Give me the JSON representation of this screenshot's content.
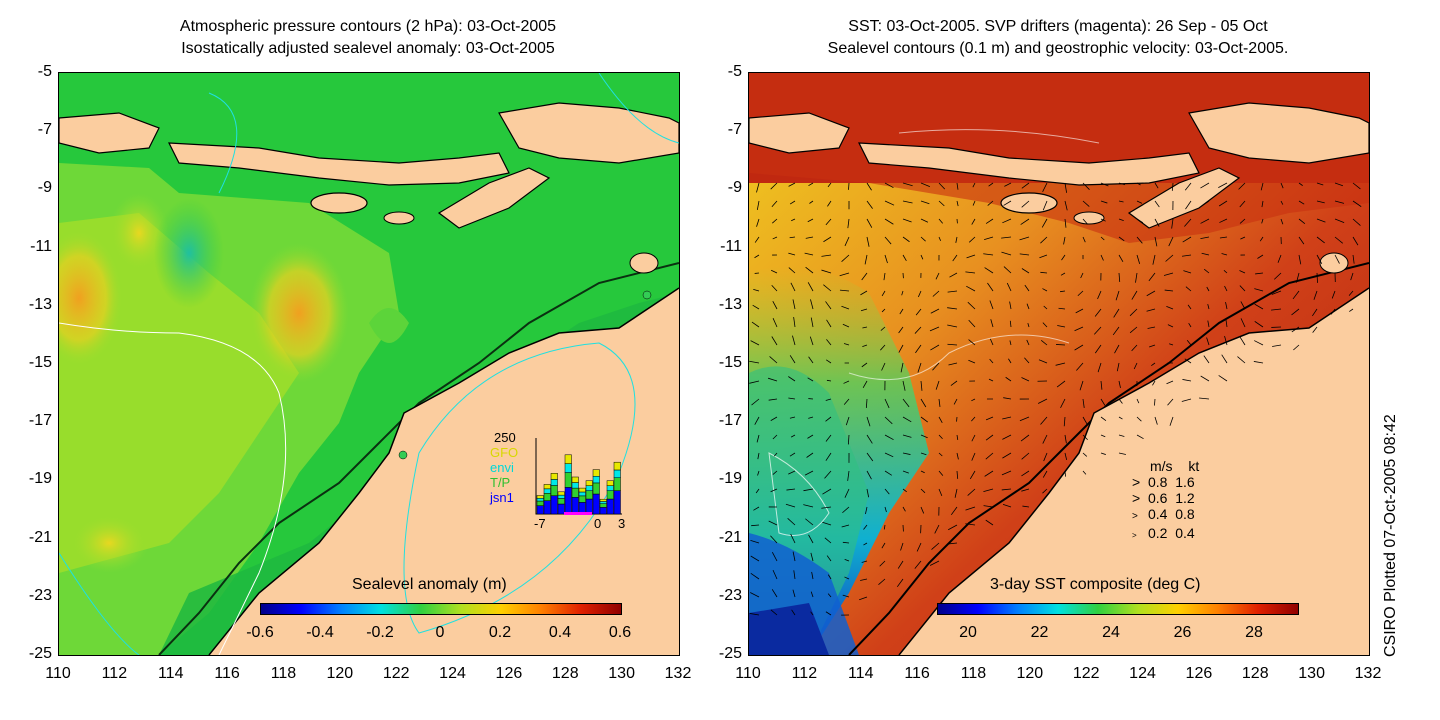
{
  "left_panel": {
    "title_line1": "Atmospheric pressure contours (2 hPa): 03-Oct-2005",
    "title_line2": "Isostatically adjusted sealevel anomaly: 03-Oct-2005",
    "y_ticks": [
      "-5",
      "-7",
      "-9",
      "-11",
      "-13",
      "-15",
      "-17",
      "-19",
      "-21",
      "-23",
      "-25"
    ],
    "x_ticks": [
      "110",
      "112",
      "114",
      "116",
      "118",
      "120",
      "122",
      "124",
      "126",
      "128",
      "130",
      "132"
    ],
    "colorbar": {
      "title": "Sealevel anomaly (m)",
      "labels": [
        "-0.6",
        "-0.4",
        "-0.2",
        "0",
        "0.2",
        "0.4",
        "0.6"
      ]
    },
    "inset": {
      "count_label": "250",
      "legend": [
        "GFO",
        "envi",
        "T/P",
        "jsn1"
      ],
      "legend_colors": [
        "#e8e800",
        "#00e8e8",
        "#30d030",
        "#0000ff"
      ],
      "x_labels": [
        "-7",
        "0",
        "3"
      ],
      "bars": [
        0.25,
        0.4,
        0.55,
        0.3,
        0.8,
        0.5,
        0.35,
        0.45,
        0.6,
        0.2,
        0.45,
        0.7
      ]
    }
  },
  "right_panel": {
    "title_line1": "SST: 03-Oct-2005. SVP drifters (magenta): 26 Sep - 05 Oct",
    "title_line2": "Sealevel contours (0.1 m) and geostrophic velocity: 03-Oct-2005.",
    "y_ticks": [
      "-5",
      "-7",
      "-9",
      "-11",
      "-13",
      "-15",
      "-17",
      "-19",
      "-21",
      "-23",
      "-25"
    ],
    "x_ticks": [
      "110",
      "112",
      "114",
      "116",
      "118",
      "120",
      "122",
      "124",
      "126",
      "128",
      "130",
      "132"
    ],
    "colorbar": {
      "title": "3-day SST composite (deg C)",
      "labels": [
        "20",
        "22",
        "24",
        "26",
        "28"
      ]
    },
    "velocity_key": {
      "header_ms": "m/s",
      "header_kt": "kt",
      "rows": [
        {
          "ms": "0.8",
          "kt": "1.6"
        },
        {
          "ms": "0.6",
          "kt": "1.2"
        },
        {
          "ms": "0.4",
          "kt": "0.8"
        },
        {
          "ms": "0.2",
          "kt": "0.4"
        }
      ]
    }
  },
  "credit": "CSIRO Plotted 07-Oct-2005 08:42",
  "colors": {
    "land": "#fbcd9f",
    "ocean_green": "#22cc44",
    "sst_hot": "#c02008"
  }
}
